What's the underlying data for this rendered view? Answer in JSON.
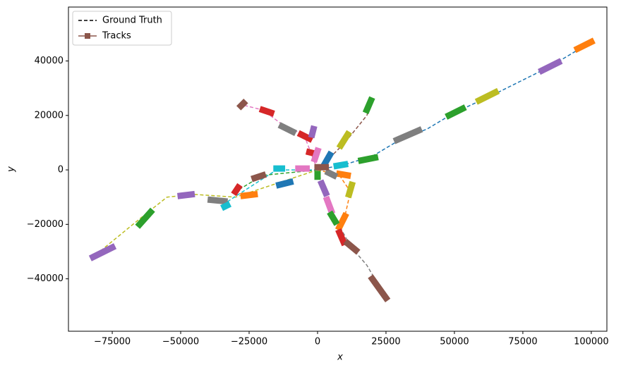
{
  "chart_data": {
    "type": "line",
    "x_label": "x",
    "y_label": "y",
    "xlim": [
      -91000,
      105700
    ],
    "ylim": [
      -59250,
      59800
    ],
    "xticks": [
      {
        "value": -75000,
        "label": "−75000"
      },
      {
        "value": -50000,
        "label": "−50000"
      },
      {
        "value": -25000,
        "label": "−25000"
      },
      0,
      25000,
      50000,
      75000,
      100000
    ],
    "yticks": [
      {
        "value": -40000,
        "label": "−40000"
      },
      {
        "value": -20000,
        "label": "−20000"
      },
      0,
      20000,
      40000
    ],
    "legend": {
      "position": "upper left",
      "entries": [
        {
          "label": "Ground Truth",
          "color": "#000000",
          "style": "dashed"
        },
        {
          "label": "Tracks",
          "color": "#8c564b",
          "style": "solid-square"
        }
      ]
    },
    "truth": [
      {
        "color": "#1f77b4",
        "x": [
          0,
          10000,
          20000,
          30000,
          40000,
          50000,
          65000,
          85000,
          100000
        ],
        "y": [
          0,
          2000,
          5000,
          11000,
          15000,
          21000,
          28000,
          38000,
          47000
        ]
      },
      {
        "color": "#8c564b",
        "x": [
          0,
          10000,
          18000,
          20000
        ],
        "y": [
          0,
          10000,
          20000,
          25000
        ]
      },
      {
        "color": "#e377c2",
        "x": [
          0,
          -5000,
          -12000,
          -20000,
          -28000
        ],
        "y": [
          0,
          13000,
          16000,
          22000,
          24000
        ]
      },
      {
        "color": "#bcbd22",
        "x": [
          0,
          -15000,
          -30000,
          -45000,
          -55000,
          -65000,
          -82000
        ],
        "y": [
          0,
          -5000,
          -10000,
          -9000,
          -10000,
          -18000,
          -32000
        ]
      },
      {
        "color": "#2ca02c",
        "x": [
          0,
          -20000,
          -30000
        ],
        "y": [
          0,
          -2000,
          -8000
        ]
      },
      {
        "color": "#7f7f7f",
        "x": [
          0,
          5000,
          12000,
          18000,
          25000
        ],
        "y": [
          0,
          -15000,
          -28000,
          -35000,
          -47000
        ]
      },
      {
        "color": "#ff7f0e",
        "x": [
          0,
          8000,
          12000,
          10000,
          8000
        ],
        "y": [
          0,
          -2000,
          -8000,
          -17000,
          -21000
        ]
      },
      {
        "color": "#17becf",
        "x": [
          0,
          -15000,
          -35000
        ],
        "y": [
          0,
          0,
          -13000
        ]
      }
    ],
    "tracks": [
      {
        "color": "#ff7f0e",
        "x": [
          95000,
          100000
        ],
        "y": [
          44500,
          47000
        ]
      },
      {
        "color": "#9467bd",
        "x": [
          82000,
          88000
        ],
        "y": [
          36500,
          39500
        ]
      },
      {
        "color": "#bcbd22",
        "x": [
          59000,
          65000
        ],
        "y": [
          25500,
          28500
        ]
      },
      {
        "color": "#2ca02c",
        "x": [
          48000,
          53000
        ],
        "y": [
          20000,
          22500
        ]
      },
      {
        "color": "#7f7f7f",
        "x": [
          29000,
          37000
        ],
        "y": [
          11000,
          14500
        ]
      },
      {
        "color": "#2ca02c",
        "x": [
          16000,
          21000
        ],
        "y": [
          3500,
          4500
        ]
      },
      {
        "color": "#17becf",
        "x": [
          7000,
          10000
        ],
        "y": [
          1500,
          2000
        ]
      },
      {
        "color": "#2ca02c",
        "x": [
          18000,
          19500
        ],
        "y": [
          22000,
          25500
        ]
      },
      {
        "color": "#bcbd22",
        "x": [
          8500,
          11000
        ],
        "y": [
          9000,
          13000
        ]
      },
      {
        "color": "#1f77b4",
        "x": [
          2500,
          4500
        ],
        "y": [
          2000,
          5500
        ]
      },
      {
        "color": "#8c564b",
        "x": [
          -28000,
          -27000
        ],
        "y": [
          23500,
          24500
        ]
      },
      {
        "color": "#d62728",
        "x": [
          -20000,
          -17000
        ],
        "y": [
          22000,
          21000
        ]
      },
      {
        "color": "#7f7f7f",
        "x": [
          -13000,
          -9000
        ],
        "y": [
          16000,
          14000
        ]
      },
      {
        "color": "#d62728",
        "x": [
          -6000,
          -3000
        ],
        "y": [
          13000,
          11500
        ]
      },
      {
        "color": "#9467bd",
        "x": [
          -2000,
          -1500
        ],
        "y": [
          13000,
          15000
        ]
      },
      {
        "color": "#d62728",
        "x": [
          -3000,
          -1000
        ],
        "y": [
          6500,
          6000
        ]
      },
      {
        "color": "#e377c2",
        "x": [
          -1000,
          0
        ],
        "y": [
          4000,
          7000
        ]
      },
      {
        "color": "#17becf",
        "x": [
          -15000,
          -13000
        ],
        "y": [
          500,
          500
        ]
      },
      {
        "color": "#e377c2",
        "x": [
          -7000,
          -4000
        ],
        "y": [
          500,
          500
        ]
      },
      {
        "color": "#8c564b",
        "x": [
          -23000,
          -20000
        ],
        "y": [
          -3000,
          -2000
        ]
      },
      {
        "color": "#1f77b4",
        "x": [
          -14000,
          -10000
        ],
        "y": [
          -5500,
          -4500
        ]
      },
      {
        "color": "#d62728",
        "x": [
          -30000,
          -29000
        ],
        "y": [
          -8000,
          -6500
        ]
      },
      {
        "color": "#ff7f0e",
        "x": [
          -27000,
          -23000
        ],
        "y": [
          -9500,
          -9000
        ]
      },
      {
        "color": "#7f7f7f",
        "x": [
          -39000,
          -34000
        ],
        "y": [
          -11000,
          -11500
        ]
      },
      {
        "color": "#17becf",
        "x": [
          -34000,
          -33000
        ],
        "y": [
          -13500,
          -13000
        ]
      },
      {
        "color": "#9467bd",
        "x": [
          -50000,
          -46000
        ],
        "y": [
          -9500,
          -9000
        ]
      },
      {
        "color": "#2ca02c",
        "x": [
          -65000,
          -61000
        ],
        "y": [
          -20000,
          -15500
        ]
      },
      {
        "color": "#9467bd",
        "x": [
          -82000,
          -75000
        ],
        "y": [
          -32000,
          -28500
        ]
      },
      {
        "color": "#ff7f0e",
        "x": [
          8000,
          11000
        ],
        "y": [
          -1500,
          -2000
        ]
      },
      {
        "color": "#bcbd22",
        "x": [
          11500,
          12500
        ],
        "y": [
          -9000,
          -5500
        ]
      },
      {
        "color": "#ff7f0e",
        "x": [
          8000,
          10000
        ],
        "y": [
          -21000,
          -17000
        ]
      },
      {
        "color": "#9467bd",
        "x": [
          1500,
          3000
        ],
        "y": [
          -5000,
          -8500
        ]
      },
      {
        "color": "#e377c2",
        "x": [
          3500,
          5000
        ],
        "y": [
          -11000,
          -15000
        ]
      },
      {
        "color": "#2ca02c",
        "x": [
          5000,
          6500
        ],
        "y": [
          -16500,
          -19000
        ]
      },
      {
        "color": "#d62728",
        "x": [
          8000,
          9500
        ],
        "y": [
          -23000,
          -26500
        ]
      },
      {
        "color": "#8c564b",
        "x": [
          11000,
          14000
        ],
        "y": [
          -27000,
          -29500
        ]
      },
      {
        "color": "#8c564b",
        "x": [
          20000,
          25000
        ],
        "y": [
          -40000,
          -47000
        ]
      },
      {
        "color": "#7f7f7f",
        "x": [
          4000,
          6000
        ],
        "y": [
          -1000,
          -2000
        ]
      },
      {
        "color": "#8c564b",
        "x": [
          0,
          3000
        ],
        "y": [
          1000,
          1000
        ]
      },
      {
        "color": "#2ca02c",
        "x": [
          0,
          0
        ],
        "y": [
          -1500,
          -2500
        ]
      }
    ]
  }
}
